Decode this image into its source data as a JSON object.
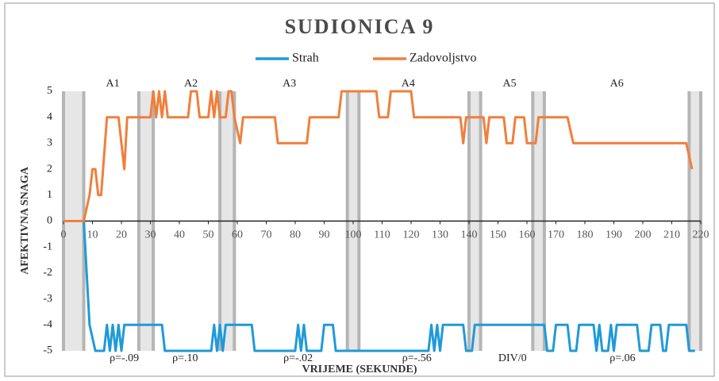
{
  "chart_data": {
    "type": "line",
    "title": "SUDIONICA 9",
    "xlabel": "VRIJEME (SEKUNDE)",
    "ylabel": "AFEKTIVNA SNAGA",
    "xlim": [
      0,
      220
    ],
    "xticks": [
      0,
      10,
      20,
      30,
      40,
      50,
      60,
      70,
      80,
      90,
      100,
      110,
      120,
      130,
      140,
      150,
      160,
      170,
      180,
      190,
      200,
      210,
      220
    ],
    "ylim": [
      -5,
      5
    ],
    "yticks": [
      -5,
      -4,
      -3,
      -2,
      -1,
      0,
      1,
      2,
      3,
      4,
      5
    ],
    "grid": false,
    "legend": "top",
    "series": [
      {
        "name": "Strah",
        "color": "#1f9ad8",
        "x": [
          0,
          7,
          9,
          11,
          14,
          15,
          16,
          17,
          18,
          19,
          20,
          21,
          22,
          34,
          35,
          51,
          52,
          53,
          54,
          55,
          56,
          65,
          66,
          80,
          81,
          82,
          83,
          84,
          89,
          90,
          93,
          94,
          126,
          127,
          128,
          129,
          130,
          131,
          138,
          139,
          141,
          142,
          166,
          167,
          169,
          170,
          174,
          175,
          177,
          178,
          183,
          184,
          185,
          186,
          188,
          189,
          190,
          191,
          198,
          199,
          202,
          203,
          206,
          207,
          208,
          209,
          215,
          216,
          218
        ],
        "values": [
          0,
          0,
          -4,
          -5,
          -5,
          -4,
          -5,
          -4,
          -5,
          -4,
          -5,
          -4,
          -4,
          -4,
          -5,
          -5,
          -4,
          -5,
          -4,
          -5,
          -4,
          -4,
          -5,
          -5,
          -4,
          -5,
          -4,
          -5,
          -5,
          -4,
          -4,
          -5,
          -5,
          -4,
          -5,
          -4,
          -5,
          -4,
          -4,
          -5,
          -5,
          -4,
          -4,
          -5,
          -5,
          -4,
          -4,
          -5,
          -5,
          -4,
          -4,
          -5,
          -4,
          -5,
          -5,
          -4,
          -5,
          -4,
          -4,
          -5,
          -5,
          -4,
          -4,
          -5,
          -5,
          -4,
          -4,
          -5,
          -5
        ]
      },
      {
        "name": "Zadovoljstvo",
        "color": "#f07f3c",
        "x": [
          0,
          7,
          9,
          10,
          11,
          12,
          13,
          15,
          19,
          20,
          21,
          22,
          30,
          31,
          32,
          33,
          34,
          35,
          36,
          43,
          44,
          46,
          47,
          50,
          51,
          52,
          53,
          54,
          56,
          57,
          58,
          59,
          61,
          62,
          73,
          74,
          84,
          85,
          95,
          96,
          108,
          109,
          112,
          113,
          120,
          121,
          137,
          138,
          139,
          145,
          146,
          147,
          152,
          153,
          155,
          156,
          159,
          160,
          163,
          164,
          174,
          176,
          215,
          217
        ],
        "values": [
          0,
          0,
          1,
          2,
          2,
          1,
          1,
          4,
          4,
          3,
          2,
          4,
          4,
          5,
          4,
          5,
          4,
          5,
          4,
          4,
          5,
          5,
          4,
          4,
          5,
          4,
          5,
          4,
          4,
          5,
          5,
          4,
          3,
          4,
          4,
          3,
          3,
          4,
          4,
          5,
          5,
          4,
          4,
          5,
          5,
          4,
          4,
          3,
          4,
          4,
          3,
          4,
          4,
          3,
          3,
          4,
          4,
          3,
          3,
          4,
          4,
          3,
          3,
          2
        ]
      }
    ],
    "regions": [
      [
        0,
        7
      ],
      [
        26,
        31
      ],
      [
        54,
        59
      ],
      [
        98,
        102
      ],
      [
        140,
        144
      ],
      [
        162,
        166
      ],
      [
        216,
        220
      ]
    ],
    "top_annotations": [
      {
        "text": "A1",
        "x": 17
      },
      {
        "text": "A2",
        "x": 44
      },
      {
        "text": "A3",
        "x": 78
      },
      {
        "text": "A4",
        "x": 119
      },
      {
        "text": "A5",
        "x": 154
      },
      {
        "text": "A6",
        "x": 191
      }
    ],
    "bottom_annotations": [
      {
        "text": "ρ=-.09",
        "x": 21
      },
      {
        "text": "ρ=.10",
        "x": 42
      },
      {
        "text": "ρ=-.02",
        "x": 81
      },
      {
        "text": "ρ=-.56",
        "x": 122
      },
      {
        "text": "DIV/0",
        "x": 155
      },
      {
        "text": "ρ=.06",
        "x": 193
      }
    ]
  }
}
